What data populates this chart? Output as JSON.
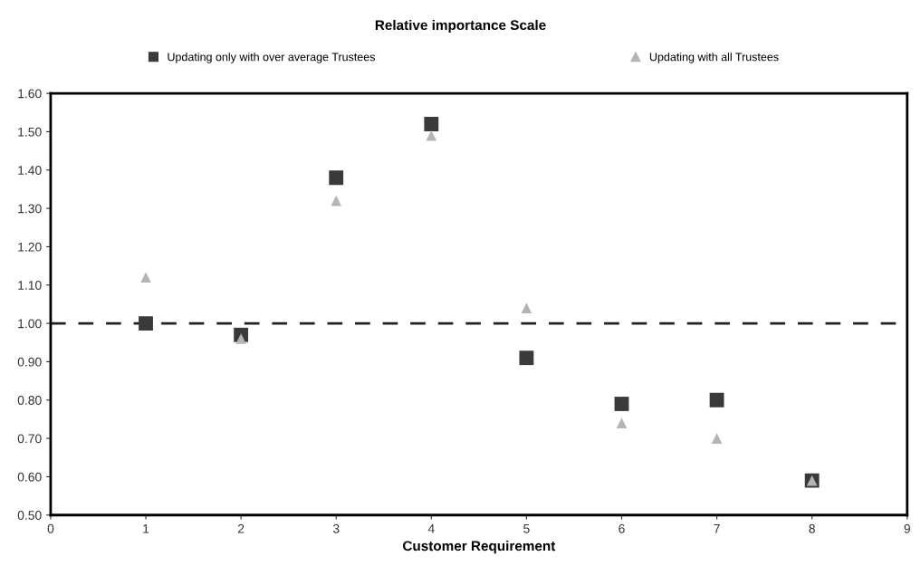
{
  "chart_data": {
    "type": "scatter",
    "title": "Relative importance Scale",
    "xlabel": "Customer Requirement",
    "x": [
      1,
      2,
      3,
      4,
      5,
      6,
      7,
      8
    ],
    "series": [
      {
        "name": "Updating only with over average Trustees",
        "color": "#3a3a3a",
        "marker": "square",
        "values": [
          1.0,
          0.97,
          1.38,
          1.52,
          0.91,
          0.79,
          0.8,
          0.59
        ]
      },
      {
        "name": "Updating with all Trustees",
        "color": "#b4b4b4",
        "marker": "triangle",
        "values": [
          1.12,
          0.96,
          1.32,
          1.49,
          1.04,
          0.74,
          0.7,
          0.59
        ]
      }
    ],
    "xlim": [
      0,
      9
    ],
    "xticks": [
      0,
      1,
      2,
      3,
      4,
      5,
      6,
      7,
      8,
      9
    ],
    "ylim": [
      0.5,
      1.6
    ],
    "yticks": [
      {
        "value": 0.5,
        "label": "0.50"
      },
      {
        "value": 0.6,
        "label": "0.60"
      },
      {
        "value": 0.7,
        "label": "0.70"
      },
      {
        "value": 0.8,
        "label": "0.80"
      },
      {
        "value": 0.9,
        "label": "0.90"
      },
      {
        "value": 1.0,
        "label": "1.00"
      },
      {
        "value": 1.1,
        "label": "1.10"
      },
      {
        "value": 1.2,
        "label": "1.20"
      },
      {
        "value": 1.3,
        "label": "1.30"
      },
      {
        "value": 1.4,
        "label": "1.40"
      },
      {
        "value": 1.5,
        "label": "1.50"
      },
      {
        "value": 1.6,
        "label": "1.60"
      }
    ],
    "ref_lines": [
      {
        "axis": "y",
        "value": 1.0,
        "color": "#222222",
        "line_style": "dashed"
      }
    ],
    "grid": false,
    "legend": "top"
  }
}
